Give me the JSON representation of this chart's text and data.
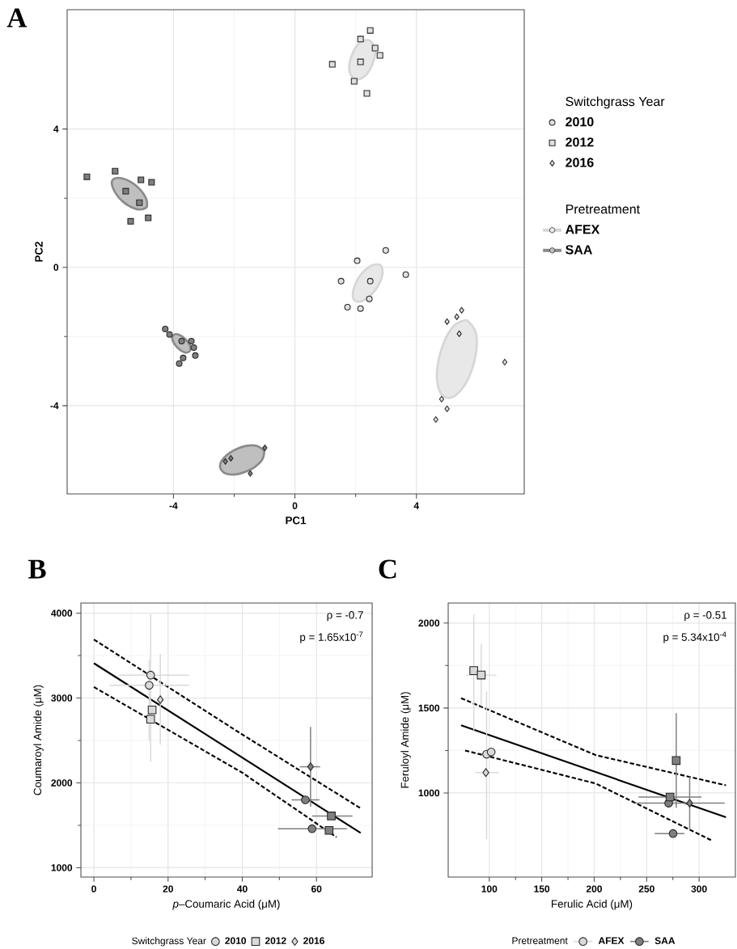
{
  "chart_data": [
    {
      "type": "scatter",
      "title": "A",
      "xlabel": "PC1",
      "ylabel": "PC2",
      "xlim": [
        -7.5,
        7.55
      ],
      "ylim": [
        -6.55,
        7.45
      ],
      "xticks": [
        -4,
        0,
        4
      ],
      "yticks": [
        -4,
        0,
        4
      ],
      "grid": true,
      "legend": "right",
      "legend_title": "Switchgrass Year",
      "annotations": [
        "Pretreatment"
      ],
      "series": [
        {
          "name": "AFEX",
          "type": "area",
          "color": "#d6d6d6",
          "x": [
            2.45,
            2.64,
            2.56,
            2.29,
            1.97,
            1.79,
            1.87,
            2.13,
            null,
            2.83,
            2.88,
            2.67,
            2.29,
            1.97,
            1.92,
            2.13,
            2.51,
            null,
            5.65,
            5.97,
            5.89,
            5.49,
            4.99,
            4.69,
            4.77,
            5.17
          ],
          "values": [
            6.57,
            6.32,
            5.89,
            5.52,
            5.45,
            5.71,
            6.13,
            6.5,
            null,
            0.07,
            -0.21,
            -0.63,
            -0.94,
            -0.96,
            -0.68,
            -0.26,
            0.05,
            null,
            -1.52,
            -1.94,
            -2.78,
            -3.53,
            -3.77,
            -3.35,
            -2.53,
            -1.75
          ]
        },
        {
          "name": "SAA",
          "type": "area",
          "color": "#8a8a8a",
          "x": [
            -4.88,
            -5.2,
            -5.65,
            -5.97,
            -6.0,
            -5.68,
            -5.23,
            -4.91,
            null,
            -3.47,
            -3.63,
            -3.87,
            -4.03,
            -4.0,
            -3.84,
            -3.6,
            -3.44,
            null,
            -1.01,
            -1.12,
            -1.57,
            -2.13,
            -2.45,
            -2.35,
            -1.89,
            -1.33
          ],
          "values": [
            1.73,
            1.68,
            1.89,
            2.25,
            2.53,
            2.57,
            2.36,
            2.01,
            null,
            -2.43,
            -2.46,
            -2.32,
            -2.11,
            -1.96,
            -1.94,
            -2.08,
            -2.29,
            null,
            -5.31,
            -5.61,
            -5.89,
            -5.99,
            -5.82,
            -5.52,
            -5.24,
            -5.15
          ]
        },
        {
          "name": "2010",
          "marker": "circle",
          "color": "#e0e0e0",
          "x": [
            2.99,
            2.05,
            1.52,
            2.48,
            3.65,
            2.45,
            1.73,
            2.16,
            -4.27,
            -4.13,
            -3.73,
            -3.41,
            -3.33,
            -3.28,
            -3.68,
            -3.81
          ],
          "values": [
            0.49,
            0.19,
            -0.4,
            -0.4,
            -0.21,
            -0.91,
            -1.15,
            -1.19,
            -1.78,
            -1.94,
            -2.13,
            -2.13,
            -2.32,
            -2.55,
            -2.62,
            -2.78
          ],
          "colors": [
            "#e0e0e0",
            "#e0e0e0",
            "#e0e0e0",
            "#e0e0e0",
            "#e0e0e0",
            "#e0e0e0",
            "#e0e0e0",
            "#e0e0e0",
            "#7f7f7f",
            "#7f7f7f",
            "#7f7f7f",
            "#7f7f7f",
            "#7f7f7f",
            "#7f7f7f",
            "#7f7f7f",
            "#7f7f7f"
          ]
        },
        {
          "name": "2012",
          "marker": "square",
          "color": "#e0e0e0",
          "x": [
            2.48,
            2.16,
            2.64,
            2.8,
            2.16,
            1.23,
            1.95,
            2.37,
            -6.85,
            -5.92,
            -5.07,
            -4.72,
            -5.57,
            -5.12,
            -5.41,
            -4.83
          ],
          "values": [
            6.85,
            6.6,
            6.34,
            6.13,
            5.94,
            5.87,
            5.38,
            5.03,
            2.62,
            2.78,
            2.53,
            2.46,
            2.2,
            1.87,
            1.33,
            1.43
          ],
          "colors": [
            "#e0e0e0",
            "#e0e0e0",
            "#e0e0e0",
            "#e0e0e0",
            "#e0e0e0",
            "#e0e0e0",
            "#e0e0e0",
            "#e0e0e0",
            "#7f7f7f",
            "#7f7f7f",
            "#7f7f7f",
            "#7f7f7f",
            "#7f7f7f",
            "#7f7f7f",
            "#7f7f7f",
            "#7f7f7f"
          ]
        },
        {
          "name": "2016",
          "marker": "diamond",
          "color": "#e0e0e0",
          "x": [
            5.01,
            5.33,
            5.49,
            5.41,
            4.83,
            5.01,
            4.64,
            6.91,
            -2.29,
            -2.11,
            -0.99,
            -1.47
          ],
          "values": [
            -1.57,
            -1.43,
            -1.24,
            -1.92,
            -3.81,
            -4.09,
            -4.4,
            -2.74,
            -5.61,
            -5.52,
            -5.22,
            -5.96
          ],
          "colors": [
            "#e0e0e0",
            "#e0e0e0",
            "#e0e0e0",
            "#e0e0e0",
            "#e0e0e0",
            "#e0e0e0",
            "#e0e0e0",
            "#e0e0e0",
            "#7f7f7f",
            "#7f7f7f",
            "#7f7f7f",
            "#7f7f7f"
          ]
        }
      ]
    },
    {
      "type": "scatter",
      "title": "B",
      "xlabel": "*p*–Coumaric Acid (μM)",
      "ylabel": "Coumaroyl Amide (μM)",
      "xlim": [
        -3.5,
        75
      ],
      "ylim": [
        890,
        4120
      ],
      "xticks": [
        0,
        20,
        40,
        60
      ],
      "yticks": [
        1000,
        2000,
        3000,
        4000
      ],
      "grid": true,
      "legend": "bottom",
      "legend_title": "Switchgrass Year",
      "annotations": [
        "ρ = -0.7",
        "p = 1.65x10$^{-7}$"
      ],
      "series": [
        {
          "type": "line",
          "line_style": "dashed",
          "color": "#000000",
          "x": [
            0,
            40,
            71.9
          ],
          "values": [
            3690,
            2570,
            1700
          ]
        },
        {
          "type": "line",
          "line_style": "dashed",
          "color": "#000000",
          "x": [
            0,
            40,
            65.4
          ],
          "values": [
            3130,
            2120,
            1360
          ]
        },
        {
          "type": "line",
          "line_style": "solid",
          "color": "#000000",
          "x": [
            0,
            71.9
          ],
          "values": [
            3410,
            1410
          ]
        },
        {
          "name": "2010",
          "marker": "circle",
          "color": "#d9d9d9",
          "x": [
            15.3,
            14.9,
            57.0,
            58.8
          ],
          "values": [
            3270,
            3150,
            1800,
            1460
          ],
          "colors": [
            "#d9d9d9",
            "#d9d9d9",
            "#7f7f7f",
            "#7f7f7f"
          ],
          "errors": [
            [
              2250,
              3990
            ],
            [
              2500,
              3450
            ],
            null,
            null
          ],
          "xerrors": [
            [
              6.8,
              25.6
            ],
            [
              4.2,
              25.6
            ],
            [
              53.3,
              60.8
            ],
            [
              49.6,
              68.2
            ]
          ]
        },
        {
          "name": "2012",
          "marker": "square",
          "color": "#d9d9d9",
          "x": [
            15.7,
            15.3,
            64.0,
            63.4
          ],
          "values": [
            2860,
            2750,
            1610,
            1440
          ],
          "colors": [
            "#d9d9d9",
            "#d9d9d9",
            "#7f7f7f",
            "#7f7f7f"
          ],
          "xerrors": [
            null,
            null,
            [
              58.8,
              69.7
            ],
            null
          ]
        },
        {
          "name": "2016",
          "marker": "diamond",
          "color": "#d9d9d9",
          "x": [
            17.9,
            58.4
          ],
          "values": [
            2980,
            2190
          ],
          "colors": [
            "#d9d9d9",
            "#7f7f7f"
          ],
          "errors": [
            [
              2450,
              3520
            ],
            470
          ],
          "xerrors": [
            null,
            [
              55.5,
              61.0
            ]
          ]
        }
      ]
    },
    {
      "type": "scatter",
      "title": "C",
      "xlabel": "Ferulic Acid (μM)",
      "ylabel": "Feruloyl Amide (μM)",
      "xlim": [
        60.8,
        334.6
      ],
      "ylim": [
        505,
        2118
      ],
      "xticks": [
        100,
        150,
        200,
        250,
        300
      ],
      "yticks": [
        1000,
        1500,
        2000
      ],
      "grid": true,
      "legend": "bottom",
      "legend_title": "Pretreatment",
      "annotations": [
        "ρ = -0.51",
        "p = 5.34x10$^{-4}$"
      ],
      "series": [
        {
          "type": "line",
          "line_style": "dashed",
          "color": "#000000",
          "x": [
            73.1,
            201.3,
            325.6
          ],
          "values": [
            1558,
            1223,
            1045
          ]
        },
        {
          "type": "line",
          "line_style": "dashed",
          "color": "#000000",
          "x": [
            76.9,
            201.3,
            311.5
          ],
          "values": [
            1250,
            1056,
            722
          ]
        },
        {
          "type": "line",
          "line_style": "solid",
          "color": "#000000",
          "x": [
            73.1,
            325.6
          ],
          "values": [
            1398,
            857
          ]
        },
        {
          "name": "AFEX",
          "marker": "circle",
          "color": "#d9d9d9",
          "x": [
            97.4,
            101.8
          ],
          "values": [
            1228,
            1241
          ],
          "errors": [
            [
              728,
              1597
            ],
            null
          ]
        },
        {
          "marker": "square",
          "color": "#d9d9d9",
          "x": [
            85.2,
            92.3
          ],
          "values": [
            1720,
            1694
          ],
          "errors": [
            [
              1368,
              2051
            ],
            [
              1510,
              1878
            ]
          ],
          "xerrors": [
            null,
            14.6
          ]
        },
        {
          "marker": "diamond",
          "color": "#d9d9d9",
          "x": [
            96.7
          ],
          "values": [
            1120
          ],
          "xerrors": [
            [
              86.7,
              109.0
            ]
          ]
        },
        {
          "name": "SAA",
          "marker": "circle",
          "color": "#7f7f7f",
          "x": [
            271.0,
            275.2
          ],
          "values": [
            940,
            761
          ],
          "xerrors": [
            [
              238.5,
              324.4
            ],
            [
              257.7,
              285.9
            ]
          ]
        },
        {
          "marker": "square",
          "color": "#7f7f7f",
          "x": [
            278.2,
            272.3
          ],
          "values": [
            1191,
            976
          ],
          "errors": [
            [
              913,
              1470
            ],
            null
          ],
          "xerrors": [
            null,
            [
              242.3,
              302.3
            ]
          ]
        },
        {
          "marker": "diamond",
          "color": "#7f7f7f",
          "x": [
            291.0
          ],
          "values": [
            940
          ],
          "errors": [
            156
          ]
        }
      ]
    }
  ]
}
